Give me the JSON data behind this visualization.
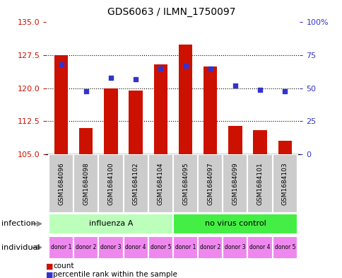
{
  "title": "GDS6063 / ILMN_1750097",
  "samples": [
    "GSM1684096",
    "GSM1684098",
    "GSM1684100",
    "GSM1684102",
    "GSM1684104",
    "GSM1684095",
    "GSM1684097",
    "GSM1684099",
    "GSM1684101",
    "GSM1684103"
  ],
  "bar_values": [
    127.5,
    111.0,
    120.0,
    119.5,
    125.5,
    130.0,
    125.0,
    111.5,
    110.5,
    108.0
  ],
  "dot_values": [
    68,
    48,
    58,
    57,
    65,
    67,
    65,
    52,
    49,
    48
  ],
  "bar_color": "#cc1100",
  "dot_color": "#3333cc",
  "ylim_left": [
    105,
    135
  ],
  "ylim_right": [
    0,
    100
  ],
  "yticks_left": [
    105,
    112.5,
    120,
    127.5,
    135
  ],
  "yticks_right": [
    0,
    25,
    50,
    75,
    100
  ],
  "ytick_labels_right": [
    "0",
    "25",
    "50",
    "75",
    "100%"
  ],
  "infection_labels": [
    "influenza A",
    "no virus control"
  ],
  "infection_colors": [
    "#bbffbb",
    "#44ee44"
  ],
  "individual_labels": [
    "donor 1",
    "donor 2",
    "donor 3",
    "donor 4",
    "donor 5",
    "donor 1",
    "donor 2",
    "donor 3",
    "donor 4",
    "donor 5"
  ],
  "individual_color": "#ee88ee",
  "sample_bg_color": "#cccccc",
  "legend_count_color": "#cc1100",
  "legend_dot_color": "#3333cc",
  "bar_width": 0.55
}
